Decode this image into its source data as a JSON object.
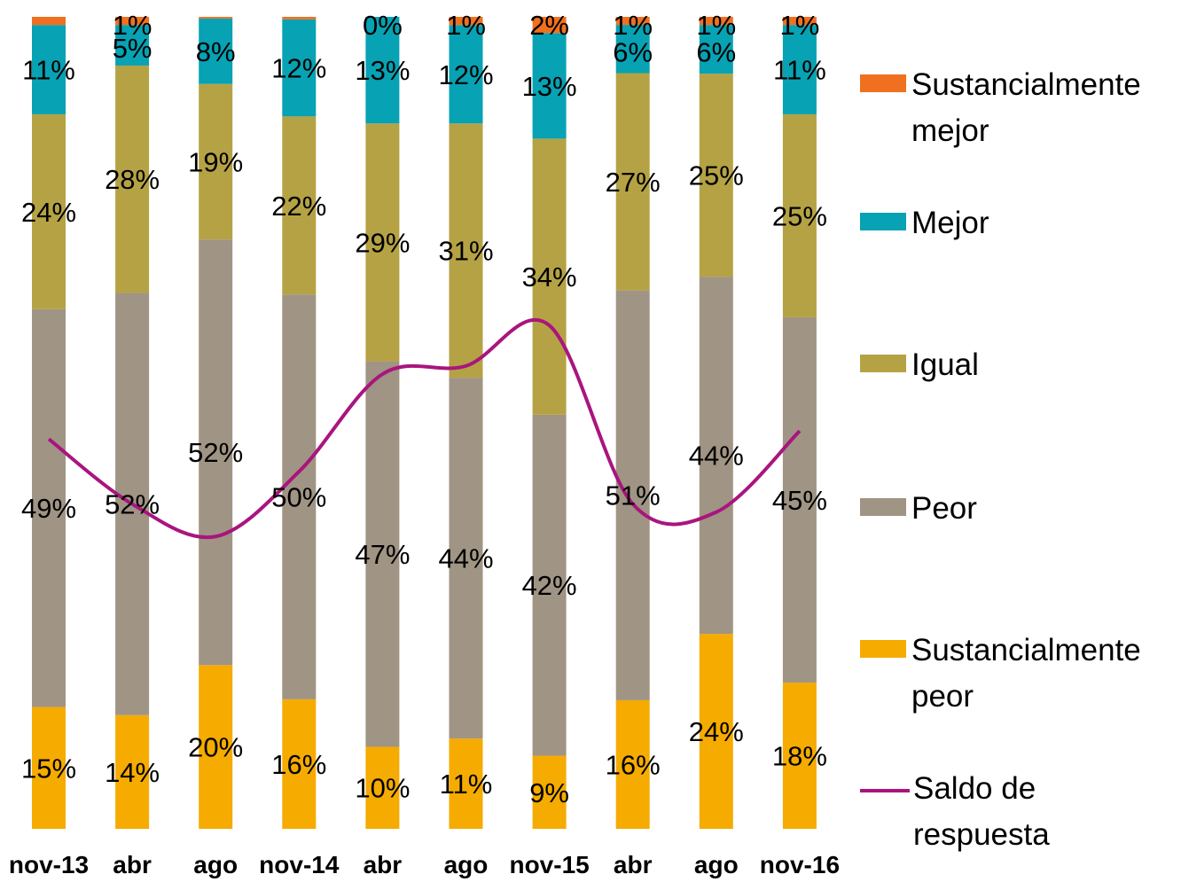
{
  "chart_data": {
    "type": "bar",
    "stacked": true,
    "categories": [
      "nov-13",
      "abr",
      "ago",
      "nov-14",
      "abr",
      "ago",
      "nov-15",
      "abr",
      "ago",
      "nov-16"
    ],
    "series": [
      {
        "name": "Sustancialmente peor",
        "color": "#f5ab00",
        "values": [
          15,
          14,
          20,
          16,
          10,
          11,
          9,
          16,
          24,
          18
        ],
        "labels": [
          "15%",
          "14%",
          "20%",
          "16%",
          "10%",
          "11%",
          "9%",
          "16%",
          "24%",
          "18%"
        ]
      },
      {
        "name": "Peor",
        "color": "#a09484",
        "values": [
          49,
          52,
          52,
          50,
          47,
          44,
          42,
          51,
          44,
          45
        ],
        "labels": [
          "49%",
          "52%",
          "52%",
          "50%",
          "47%",
          "44%",
          "42%",
          "51%",
          "44%",
          "45%"
        ]
      },
      {
        "name": "Igual",
        "color": "#b5a244",
        "values": [
          24,
          28,
          19,
          22,
          29,
          31,
          34,
          27,
          25,
          25
        ],
        "labels": [
          "24%",
          "28%",
          "19%",
          "22%",
          "29%",
          "31%",
          "34%",
          "27%",
          "25%",
          "25%"
        ]
      },
      {
        "name": "Mejor",
        "color": "#07a2b3",
        "values": [
          11,
          5,
          8,
          12,
          13,
          12,
          13,
          6,
          6,
          11
        ],
        "labels": [
          "11%",
          "5%",
          "8%",
          "12%",
          "13%",
          "12%",
          "13%",
          "6%",
          "6%",
          "11%"
        ]
      },
      {
        "name": "Sustancialmente mejor",
        "color": "#f07020",
        "values": [
          1,
          1,
          0.2,
          0.3,
          0,
          1,
          2,
          1,
          1,
          1
        ],
        "labels": [
          "",
          "1%",
          "",
          "",
          "0%",
          "1%",
          "2%",
          "1%",
          "1%",
          "1%"
        ]
      }
    ],
    "line_series": {
      "name": "Saldo de respuesta",
      "color": "#a9157e",
      "values": [
        -52,
        -60,
        -64,
        -56,
        -44,
        -43,
        -38,
        -60,
        -61,
        -51
      ]
    },
    "ylim": [
      0,
      100
    ],
    "legend_position": "right"
  },
  "legend": {
    "items": [
      {
        "label": "Sustancialmente mejor",
        "color": "#f07020",
        "kind": "swatch"
      },
      {
        "label": "Mejor",
        "color": "#07a2b3",
        "kind": "swatch"
      },
      {
        "label": "Igual",
        "color": "#b5a244",
        "kind": "swatch"
      },
      {
        "label": "Peor",
        "color": "#a09484",
        "kind": "swatch"
      },
      {
        "label": "Sustancialmente peor",
        "color": "#f5ab00",
        "kind": "swatch"
      },
      {
        "label": "Saldo de respuesta",
        "color": "#a9157e",
        "kind": "line"
      }
    ]
  }
}
